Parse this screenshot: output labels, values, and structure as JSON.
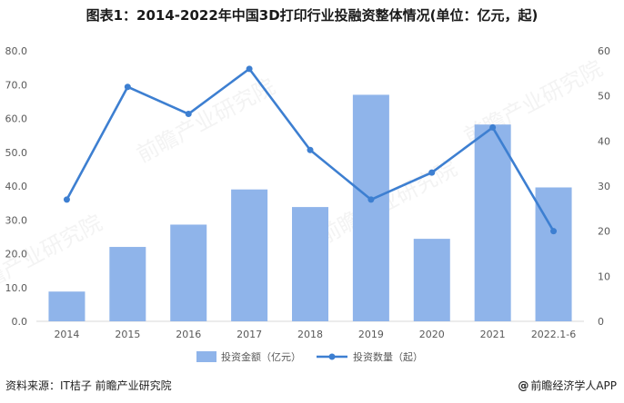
{
  "title": "图表1：2014-2022年中国3D打印行业投融资整体情况(单位：亿元，起)",
  "watermark": "前瞻产业研究院",
  "source": "资料来源：IT桔子 前瞻产业研究院",
  "credit": "前瞻经济学人APP",
  "credit_icon": "at-sign-icon",
  "colors": {
    "bar": "#8fb4ea",
    "line": "#3d7fd1",
    "axis": "#d9d9d9",
    "tick": "#595959"
  },
  "chart_data": {
    "type": "bar",
    "categories": [
      "2014",
      "2015",
      "2016",
      "2017",
      "2018",
      "2019",
      "2020",
      "2021",
      "2022.1-6"
    ],
    "series": [
      {
        "name": "投资金额（亿元）",
        "type": "bar",
        "axis": "left",
        "values": [
          8.8,
          22.0,
          28.6,
          39.0,
          33.8,
          67.0,
          24.4,
          58.2,
          39.6
        ]
      },
      {
        "name": "投资数量（起）",
        "type": "line",
        "axis": "right",
        "values": [
          27,
          52,
          46,
          56,
          38,
          27,
          33,
          43,
          20
        ]
      }
    ],
    "ylim_left": [
      0,
      80
    ],
    "yticks_left": [
      "0.0",
      "10.0",
      "20.0",
      "30.0",
      "40.0",
      "50.0",
      "60.0",
      "70.0",
      "80.0"
    ],
    "ylim_right": [
      0,
      60
    ],
    "yticks_right": [
      "0",
      "10",
      "20",
      "30",
      "40",
      "50",
      "60"
    ],
    "grid": false,
    "legend": "bottom"
  }
}
